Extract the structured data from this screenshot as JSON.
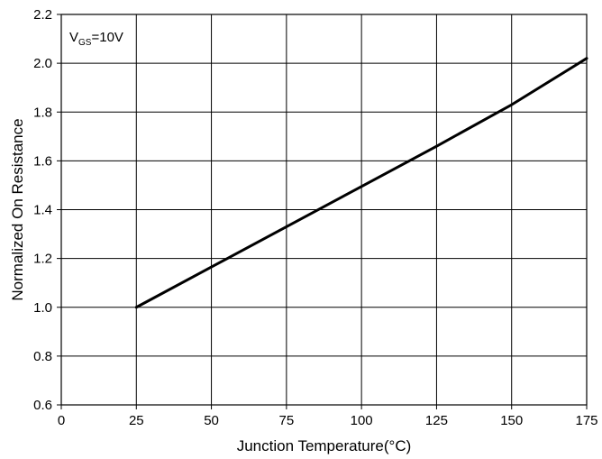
{
  "chart_data": {
    "type": "line",
    "title": "",
    "xlabel": "Junction Temperature(°C)",
    "ylabel": "Normalized On Resistance",
    "xlim": [
      0,
      175
    ],
    "ylim": [
      0.6,
      2.2
    ],
    "xticks": [
      0,
      25,
      50,
      75,
      100,
      125,
      150,
      175
    ],
    "yticks": [
      0.6,
      0.8,
      1.0,
      1.2,
      1.4,
      1.6,
      1.8,
      2.0,
      2.2
    ],
    "xtick_labels": [
      "0",
      "25",
      "50",
      "75",
      "100",
      "125",
      "150",
      "175"
    ],
    "ytick_labels": [
      "0.6",
      "0.8",
      "1.0",
      "1.2",
      "1.4",
      "1.6",
      "1.8",
      "2.0",
      "2.2"
    ],
    "grid": true,
    "annotation": {
      "main": "V",
      "subscript": "GS",
      "suffix": "=10V"
    },
    "series": [
      {
        "x": [
          25,
          50,
          75,
          100,
          125,
          150,
          175
        ],
        "y": [
          1.0,
          1.165,
          1.33,
          1.495,
          1.66,
          1.83,
          2.02
        ],
        "color": "#000000"
      }
    ]
  }
}
